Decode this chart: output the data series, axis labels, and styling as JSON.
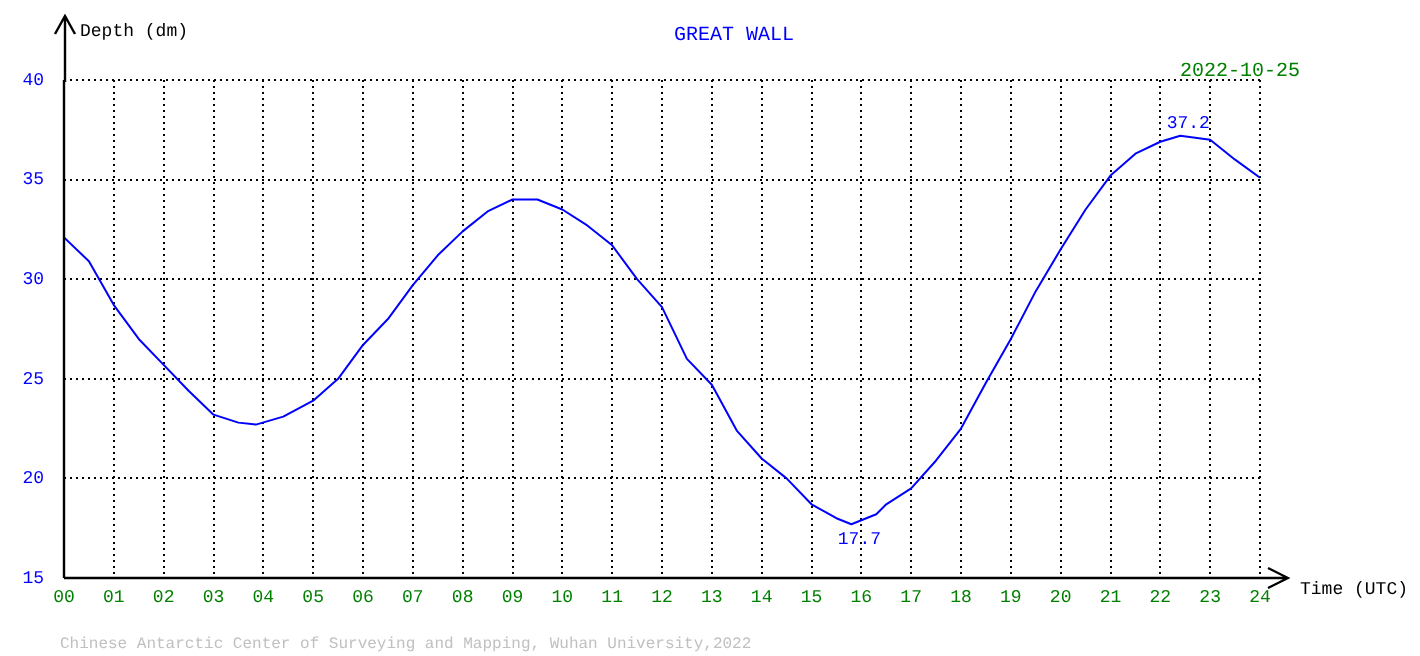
{
  "chart_data": {
    "type": "line",
    "title": "GREAT WALL",
    "xlabel": "Time (UTC)",
    "ylabel": "Depth (dm)",
    "x": [
      0,
      0.5,
      1,
      1.5,
      2,
      2.5,
      3,
      3.5,
      3.85,
      4.4,
      5,
      5.5,
      6,
      6.5,
      7,
      7.5,
      8,
      8.5,
      9,
      9.5,
      10,
      10.5,
      11,
      11.5,
      12,
      12.5,
      13,
      13.5,
      14,
      14.5,
      15,
      15.5,
      15.8,
      16.3,
      16.5,
      17,
      17.5,
      18,
      18.5,
      19,
      19.5,
      20,
      20.5,
      21,
      21.5,
      22,
      22.4,
      23,
      23.5,
      24
    ],
    "series": [
      {
        "color": "#0000ff",
        "values": [
          32.1,
          30.9,
          28.7,
          27.0,
          25.7,
          24.4,
          23.2,
          22.8,
          22.7,
          23.1,
          23.9,
          25.0,
          26.7,
          28.0,
          29.7,
          31.2,
          32.4,
          33.4,
          34.0,
          34.0,
          33.5,
          32.7,
          31.7,
          30.0,
          28.6,
          26.0,
          24.7,
          22.4,
          21.0,
          20.0,
          18.7,
          18.0,
          17.7,
          18.2,
          18.7,
          19.5,
          20.9,
          22.5,
          24.8,
          27.0,
          29.4,
          31.5,
          33.5,
          35.2,
          36.3,
          36.9,
          37.2,
          37.0,
          36.0,
          35.1
        ]
      }
    ],
    "xlim": [
      0,
      24
    ],
    "xticks": [
      {
        "value": 0,
        "label": "00"
      },
      {
        "value": 1,
        "label": "01"
      },
      {
        "value": 2,
        "label": "02"
      },
      {
        "value": 3,
        "label": "03"
      },
      {
        "value": 4,
        "label": "04"
      },
      {
        "value": 5,
        "label": "05"
      },
      {
        "value": 6,
        "label": "06"
      },
      {
        "value": 7,
        "label": "07"
      },
      {
        "value": 8,
        "label": "08"
      },
      {
        "value": 9,
        "label": "09"
      },
      10,
      11,
      12,
      13,
      14,
      15,
      16,
      17,
      18,
      19,
      20,
      21,
      22,
      23,
      24
    ],
    "ylim": [
      15,
      40
    ],
    "yticks": [
      15,
      20,
      25,
      30,
      35,
      40
    ],
    "grid": true,
    "legend": false,
    "marker": "none",
    "line_style": "solid",
    "annotations": [
      {
        "text": "37.2",
        "x": 22.4,
        "y": 37.2
      },
      {
        "text": "17.7",
        "x": 15.8,
        "y": 17.7
      },
      "2022-10-25",
      "Chinese Antarctic Center of Surveying and Mapping, Wuhan University,2022"
    ]
  }
}
